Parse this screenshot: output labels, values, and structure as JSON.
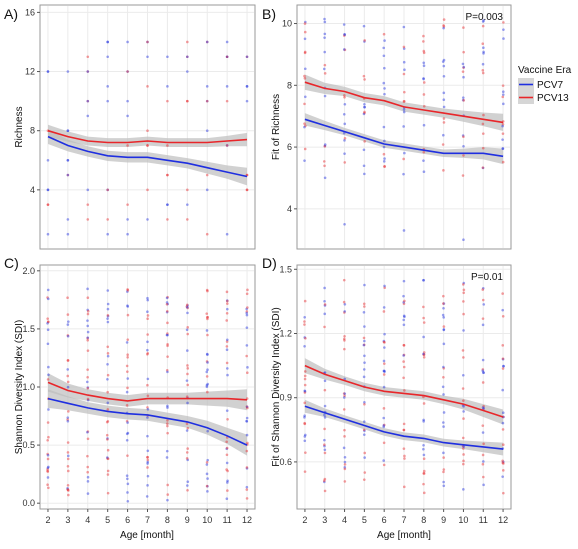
{
  "legend": {
    "title": "Vaccine Era",
    "items": [
      {
        "label": "PCV7",
        "color": "#1f2fe0"
      },
      {
        "label": "PCV13",
        "color": "#e8262a"
      }
    ]
  },
  "colors": {
    "pcv7": "#1f2fe0",
    "pcv13": "#e8262a",
    "ribbon": "#bdbdbd",
    "grid": "#ebebeb",
    "border": "#9a9a9a"
  },
  "chart_data": [
    {
      "panel_label": "A)",
      "type": "scatter",
      "title": "",
      "xlabel": "",
      "ylabel": "Richness",
      "annotation": "",
      "xlim": [
        1.6,
        12.4
      ],
      "ylim": [
        0,
        16.5
      ],
      "xticks": [],
      "yticks": [
        4,
        8,
        12,
        16
      ],
      "grid": true,
      "points": {
        "count_per_x": 9,
        "values": [
          1,
          2,
          3,
          4,
          5,
          6,
          7,
          8,
          9,
          10,
          11,
          12,
          13,
          14
        ],
        "discrete": true
      },
      "series": [
        {
          "name": "PCV7",
          "x": [
            2,
            3,
            4,
            5,
            6,
            7,
            8,
            9,
            10,
            11,
            12
          ],
          "y": [
            7.6,
            7.0,
            6.6,
            6.3,
            6.2,
            6.2,
            6.0,
            5.8,
            5.5,
            5.2,
            4.9
          ],
          "band": [
            0.5,
            0.4,
            0.35,
            0.35,
            0.35,
            0.35,
            0.35,
            0.35,
            0.4,
            0.45,
            0.6
          ]
        },
        {
          "name": "PCV13",
          "x": [
            2,
            3,
            4,
            5,
            6,
            7,
            8,
            9,
            10,
            11,
            12
          ],
          "y": [
            8.0,
            7.6,
            7.3,
            7.2,
            7.2,
            7.3,
            7.2,
            7.2,
            7.2,
            7.3,
            7.4
          ],
          "band": [
            0.4,
            0.35,
            0.3,
            0.3,
            0.3,
            0.3,
            0.3,
            0.3,
            0.3,
            0.35,
            0.45
          ]
        }
      ]
    },
    {
      "panel_label": "B)",
      "type": "scatter",
      "title": "",
      "xlabel": "",
      "ylabel": "Fit of Richness",
      "annotation": "P=0.003",
      "xlim": [
        1.6,
        12.4
      ],
      "ylim": [
        2.7,
        10.6
      ],
      "xticks": [],
      "yticks": [
        4,
        6,
        8,
        10
      ],
      "grid": true,
      "points": {
        "count_per_x": 16,
        "min": 5.0,
        "max": 10.2,
        "outliers": [
          3.5,
          3.3,
          3.0
        ]
      },
      "series": [
        {
          "name": "PCV7",
          "x": [
            2,
            3,
            4,
            5,
            6,
            7,
            8,
            9,
            10,
            11,
            12
          ],
          "y": [
            6.9,
            6.7,
            6.5,
            6.3,
            6.1,
            6.0,
            5.9,
            5.8,
            5.8,
            5.8,
            5.7
          ],
          "band": [
            0.2,
            0.15,
            0.12,
            0.12,
            0.12,
            0.12,
            0.12,
            0.12,
            0.15,
            0.2,
            0.25
          ]
        },
        {
          "name": "PCV13",
          "x": [
            2,
            3,
            4,
            5,
            6,
            7,
            8,
            9,
            10,
            11,
            12
          ],
          "y": [
            8.1,
            7.9,
            7.8,
            7.6,
            7.5,
            7.3,
            7.2,
            7.1,
            7.0,
            6.9,
            6.8
          ],
          "band": [
            0.25,
            0.18,
            0.15,
            0.15,
            0.15,
            0.15,
            0.15,
            0.15,
            0.18,
            0.22,
            0.28
          ]
        }
      ]
    },
    {
      "panel_label": "C)",
      "type": "scatter",
      "title": "",
      "xlabel": "Age [month]",
      "ylabel": "Shannon Diversity Index (SDI)",
      "annotation": "",
      "xlim": [
        1.6,
        12.4
      ],
      "ylim": [
        -0.05,
        2.05
      ],
      "xticks": [
        2,
        3,
        4,
        5,
        6,
        7,
        8,
        9,
        10,
        11,
        12
      ],
      "yticks": [
        0.0,
        0.5,
        1.0,
        1.5,
        2.0
      ],
      "grid": true,
      "points": {
        "count_per_x": 28,
        "min": 0.0,
        "max": 1.85
      },
      "series": [
        {
          "name": "PCV7",
          "x": [
            2,
            3,
            4,
            5,
            6,
            7,
            8,
            9,
            10,
            11,
            12
          ],
          "y": [
            0.9,
            0.86,
            0.82,
            0.79,
            0.77,
            0.76,
            0.73,
            0.7,
            0.65,
            0.58,
            0.5
          ],
          "band": [
            0.08,
            0.06,
            0.05,
            0.05,
            0.05,
            0.05,
            0.05,
            0.05,
            0.06,
            0.07,
            0.09
          ]
        },
        {
          "name": "PCV13",
          "x": [
            2,
            3,
            4,
            5,
            6,
            7,
            8,
            9,
            10,
            11,
            12
          ],
          "y": [
            1.04,
            0.97,
            0.93,
            0.9,
            0.88,
            0.9,
            0.9,
            0.9,
            0.9,
            0.9,
            0.89
          ],
          "band": [
            0.08,
            0.06,
            0.05,
            0.05,
            0.05,
            0.05,
            0.05,
            0.05,
            0.06,
            0.07,
            0.09
          ]
        }
      ]
    },
    {
      "panel_label": "D)",
      "type": "scatter",
      "title": "",
      "xlabel": "Age [month]",
      "ylabel": "Fit of Shannon Diversity Index (SDI)",
      "annotation": "P=0.01",
      "xlim": [
        1.6,
        12.4
      ],
      "ylim": [
        0.38,
        1.52
      ],
      "xticks": [
        2,
        3,
        4,
        5,
        6,
        7,
        8,
        9,
        10,
        11,
        12
      ],
      "yticks": [
        0.6,
        0.9,
        1.2,
        1.5
      ],
      "grid": true,
      "points": {
        "count_per_x": 24,
        "min": 0.45,
        "max": 1.45
      },
      "series": [
        {
          "name": "PCV7",
          "x": [
            2,
            3,
            4,
            5,
            6,
            7,
            8,
            9,
            10,
            11,
            12
          ],
          "y": [
            0.86,
            0.83,
            0.8,
            0.77,
            0.74,
            0.72,
            0.71,
            0.69,
            0.68,
            0.67,
            0.66
          ],
          "band": [
            0.03,
            0.02,
            0.018,
            0.018,
            0.018,
            0.018,
            0.018,
            0.018,
            0.02,
            0.025,
            0.03
          ]
        },
        {
          "name": "PCV13",
          "x": [
            2,
            3,
            4,
            5,
            6,
            7,
            8,
            9,
            10,
            11,
            12
          ],
          "y": [
            1.05,
            1.01,
            0.98,
            0.95,
            0.93,
            0.92,
            0.91,
            0.89,
            0.87,
            0.84,
            0.81
          ],
          "band": [
            0.035,
            0.025,
            0.02,
            0.02,
            0.02,
            0.02,
            0.02,
            0.02,
            0.025,
            0.03,
            0.035
          ]
        }
      ]
    }
  ]
}
